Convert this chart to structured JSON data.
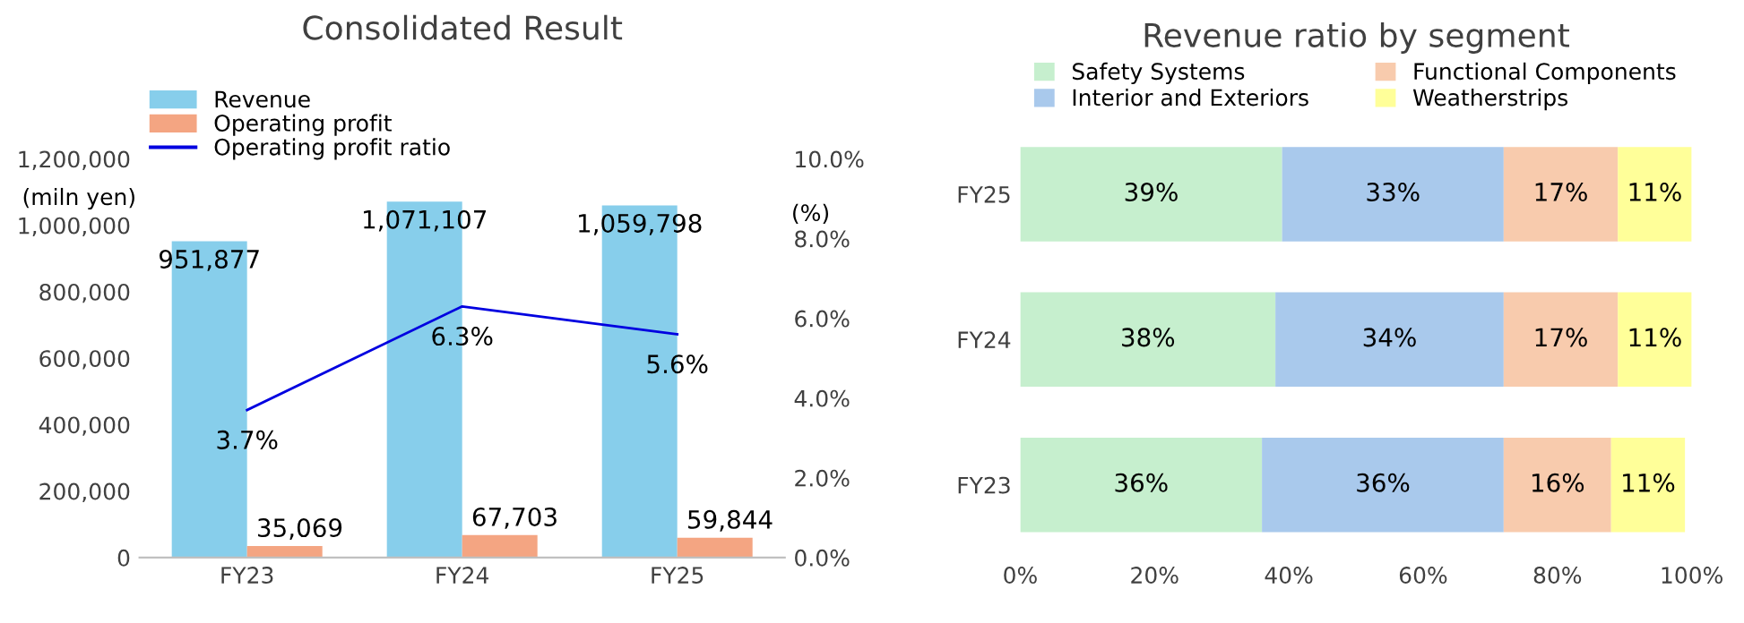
{
  "chart_data": [
    {
      "type": "bar",
      "title": "Consolidated Result",
      "ylabel": "(miln yen)",
      "y2label": "(%)",
      "categories": [
        "FY23",
        "FY24",
        "FY25"
      ],
      "series": [
        {
          "name": "Revenue",
          "color": "#87ceeb",
          "values": [
            951877,
            1071107,
            1059798
          ],
          "value_labels": [
            "951,877",
            "1,071,107",
            "1,059,798"
          ]
        },
        {
          "name": "Operating profit",
          "color": "#f4a582",
          "values": [
            35069,
            67703,
            59844
          ],
          "value_labels": [
            "35,069",
            "67,703",
            "59,844"
          ]
        },
        {
          "name": "Operating profit ratio",
          "type": "line",
          "axis": "y2",
          "color": "#0000e0",
          "values": [
            3.7,
            6.3,
            5.6
          ],
          "value_labels": [
            "3.7%",
            "6.3%",
            "5.6%"
          ]
        }
      ],
      "ylim": [
        0,
        1200000
      ],
      "yticks": [
        {
          "value": 0,
          "label": "0"
        },
        {
          "value": 200000,
          "label": "200,000"
        },
        {
          "value": 400000,
          "label": "400,000"
        },
        {
          "value": 600000,
          "label": "600,000"
        },
        {
          "value": 800000,
          "label": "800,000"
        },
        {
          "value": 1000000,
          "label": "1,000,000"
        },
        {
          "value": 1200000,
          "label": "1,200,000"
        }
      ],
      "y2lim": [
        0,
        10
      ],
      "y2ticks": [
        {
          "value": 0,
          "label": "0.0%"
        },
        {
          "value": 2,
          "label": "2.0%"
        },
        {
          "value": 4,
          "label": "4.0%"
        },
        {
          "value": 6,
          "label": "6.0%"
        },
        {
          "value": 8,
          "label": "8.0%"
        },
        {
          "value": 10,
          "label": "10.0%"
        }
      ],
      "grid": false,
      "legend": "top left"
    },
    {
      "type": "bar",
      "title": "Revenue ratio by segment",
      "orientation": "horizontal",
      "stacked": true,
      "categories": [
        "FY25",
        "FY24",
        "FY23"
      ],
      "series": [
        {
          "name": "Safety Systems",
          "color": "#c6efce",
          "values": [
            39,
            38,
            36
          ],
          "value_labels": [
            "39%",
            "38%",
            "36%"
          ]
        },
        {
          "name": "Interior and Exteriors",
          "color": "#a9c9ec",
          "values": [
            33,
            34,
            36
          ],
          "value_labels": [
            "33%",
            "34%",
            "36%"
          ]
        },
        {
          "name": "Functional Components",
          "color": "#f8cbad",
          "values": [
            17,
            17,
            16
          ],
          "value_labels": [
            "17%",
            "17%",
            "16%"
          ]
        },
        {
          "name": "Weatherstrips",
          "color": "#ffff99",
          "values": [
            11,
            11,
            11
          ],
          "value_labels": [
            "11%",
            "11%",
            "11%"
          ]
        }
      ],
      "xlim": [
        0,
        100
      ],
      "xticks": [
        {
          "value": 0,
          "label": "0%"
        },
        {
          "value": 20,
          "label": "20%"
        },
        {
          "value": 40,
          "label": "40%"
        },
        {
          "value": 60,
          "label": "60%"
        },
        {
          "value": 80,
          "label": "80%"
        },
        {
          "value": 100,
          "label": "100%"
        }
      ],
      "grid": false,
      "legend": "top"
    }
  ]
}
